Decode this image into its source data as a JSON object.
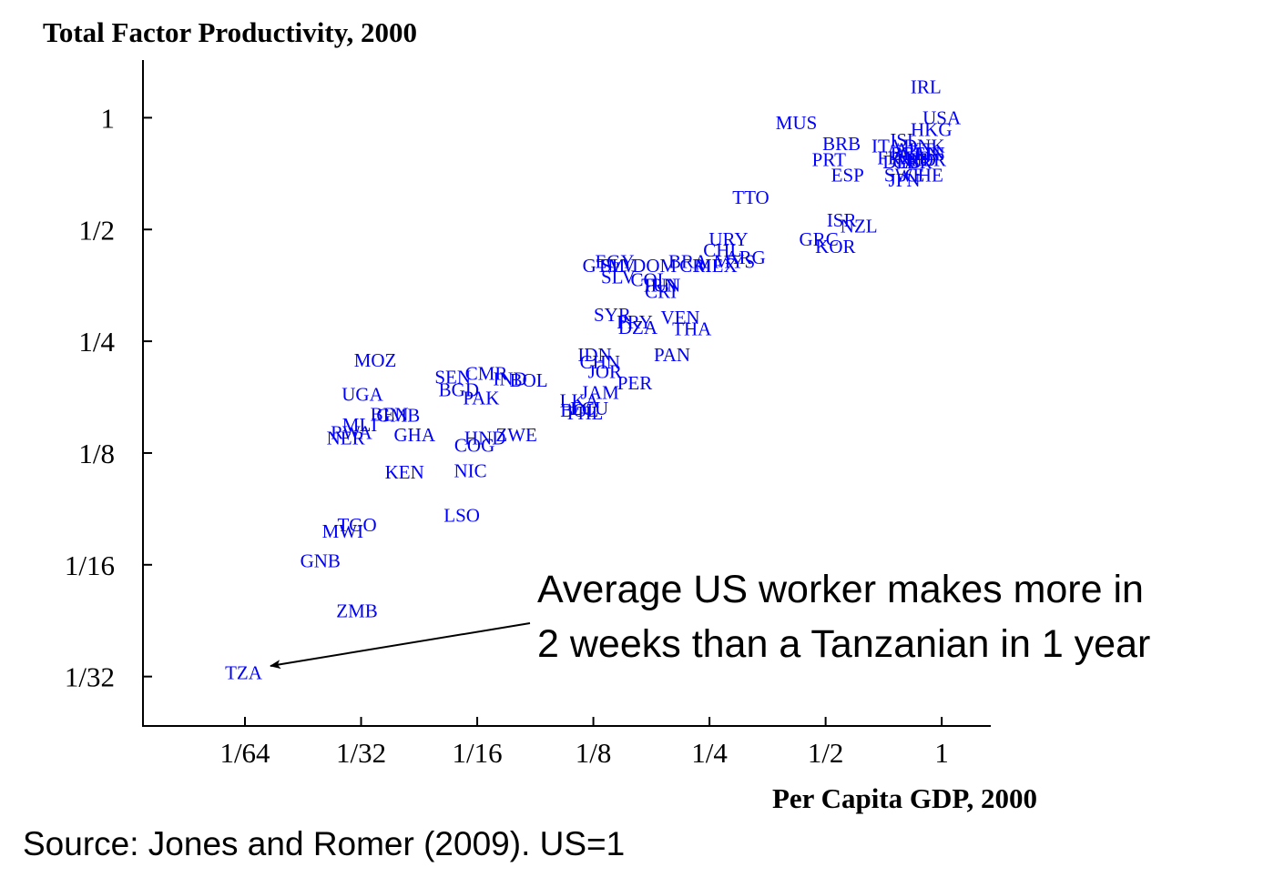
{
  "chart_data": {
    "type": "scatter",
    "ylabel": "Total Factor Productivity, 2000",
    "xlabel": "Per Capita GDP, 2000",
    "xscale": "log2",
    "yscale": "log2",
    "xticks": [
      {
        "value": 0.015625,
        "label": "1/64"
      },
      {
        "value": 0.03125,
        "label": "1/32"
      },
      {
        "value": 0.0625,
        "label": "1/16"
      },
      {
        "value": 0.125,
        "label": "1/8"
      },
      {
        "value": 0.25,
        "label": "1/4"
      },
      {
        "value": 0.5,
        "label": "1/2"
      },
      {
        "value": 1,
        "label": "1"
      }
    ],
    "yticks": [
      {
        "value": 1,
        "label": "1"
      },
      {
        "value": 0.5,
        "label": "1/2"
      },
      {
        "value": 0.25,
        "label": "1/4"
      },
      {
        "value": 0.125,
        "label": "1/8"
      },
      {
        "value": 0.0625,
        "label": "1/16"
      },
      {
        "value": 0.03125,
        "label": "1/32"
      }
    ],
    "xlim": [
      0.0085,
      1.34
    ],
    "ylim": [
      0.023,
      1.43
    ],
    "points": [
      {
        "label": "IRL",
        "x": 0.91,
        "y": 1.21
      },
      {
        "label": "USA",
        "x": 1.0,
        "y": 1.0
      },
      {
        "label": "HKG",
        "x": 0.94,
        "y": 0.93
      },
      {
        "label": "MUS",
        "x": 0.42,
        "y": 0.97
      },
      {
        "label": "BRB",
        "x": 0.55,
        "y": 0.85
      },
      {
        "label": "ITA",
        "x": 0.72,
        "y": 0.84
      },
      {
        "label": "ISL",
        "x": 0.8,
        "y": 0.87
      },
      {
        "label": "DNK",
        "x": 0.9,
        "y": 0.84
      },
      {
        "label": "FIN",
        "x": 0.93,
        "y": 0.8
      },
      {
        "label": "AUT",
        "x": 0.85,
        "y": 0.82
      },
      {
        "label": "BEL",
        "x": 0.82,
        "y": 0.8
      },
      {
        "label": "FRA",
        "x": 0.76,
        "y": 0.78
      },
      {
        "label": "CAN",
        "x": 0.88,
        "y": 0.8
      },
      {
        "label": "NLD",
        "x": 0.86,
        "y": 0.77
      },
      {
        "label": "GBR",
        "x": 0.84,
        "y": 0.76
      },
      {
        "label": "NOR",
        "x": 0.91,
        "y": 0.77
      },
      {
        "label": "AUS",
        "x": 0.83,
        "y": 0.78
      },
      {
        "label": "DEU",
        "x": 0.79,
        "y": 0.76
      },
      {
        "label": "PRT",
        "x": 0.51,
        "y": 0.77
      },
      {
        "label": "ESP",
        "x": 0.57,
        "y": 0.7
      },
      {
        "label": "SWE",
        "x": 0.8,
        "y": 0.7
      },
      {
        "label": "CHE",
        "x": 0.9,
        "y": 0.7
      },
      {
        "label": "JPN",
        "x": 0.8,
        "y": 0.68
      },
      {
        "label": "TTO",
        "x": 0.32,
        "y": 0.61
      },
      {
        "label": "ISR",
        "x": 0.55,
        "y": 0.53
      },
      {
        "label": "NZL",
        "x": 0.61,
        "y": 0.51
      },
      {
        "label": "GRC",
        "x": 0.48,
        "y": 0.47
      },
      {
        "label": "KOR",
        "x": 0.53,
        "y": 0.45
      },
      {
        "label": "URY",
        "x": 0.28,
        "y": 0.47
      },
      {
        "label": "CHL",
        "x": 0.27,
        "y": 0.44
      },
      {
        "label": "ARG",
        "x": 0.31,
        "y": 0.42
      },
      {
        "label": "MYS",
        "x": 0.29,
        "y": 0.41
      },
      {
        "label": "MEX",
        "x": 0.26,
        "y": 0.4
      },
      {
        "label": "BRA",
        "x": 0.22,
        "y": 0.41
      },
      {
        "label": "CRI",
        "x": 0.23,
        "y": 0.4
      },
      {
        "label": "EGY",
        "x": 0.142,
        "y": 0.41
      },
      {
        "label": "GTM",
        "x": 0.133,
        "y": 0.4
      },
      {
        "label": "SLV",
        "x": 0.145,
        "y": 0.4
      },
      {
        "label": "DOM",
        "x": 0.18,
        "y": 0.4
      },
      {
        "label": "SLV",
        "x": 0.145,
        "y": 0.372
      },
      {
        "label": "COL",
        "x": 0.175,
        "y": 0.366
      },
      {
        "label": "TUN",
        "x": 0.187,
        "y": 0.354
      },
      {
        "label": "IRN",
        "x": 0.187,
        "y": 0.354
      },
      {
        "label": "CRI",
        "x": 0.187,
        "y": 0.34
      },
      {
        "label": "SYR",
        "x": 0.14,
        "y": 0.295
      },
      {
        "label": "PRY",
        "x": 0.16,
        "y": 0.282
      },
      {
        "label": "DZA",
        "x": 0.163,
        "y": 0.272
      },
      {
        "label": "VEN",
        "x": 0.21,
        "y": 0.29
      },
      {
        "label": "THA",
        "x": 0.225,
        "y": 0.27
      },
      {
        "label": "PAN",
        "x": 0.2,
        "y": 0.23
      },
      {
        "label": "IDN",
        "x": 0.126,
        "y": 0.23
      },
      {
        "label": "CHN",
        "x": 0.13,
        "y": 0.22
      },
      {
        "label": "JOR",
        "x": 0.134,
        "y": 0.207
      },
      {
        "label": "PER",
        "x": 0.16,
        "y": 0.193
      },
      {
        "label": "JAM",
        "x": 0.13,
        "y": 0.182
      },
      {
        "label": "LKA",
        "x": 0.115,
        "y": 0.173
      },
      {
        "label": "ECU",
        "x": 0.122,
        "y": 0.165
      },
      {
        "label": "BOL",
        "x": 0.115,
        "y": 0.163
      },
      {
        "label": "PHL",
        "x": 0.119,
        "y": 0.16
      },
      {
        "label": "MOZ",
        "x": 0.034,
        "y": 0.222
      },
      {
        "label": "UGA",
        "x": 0.0315,
        "y": 0.18
      },
      {
        "label": "SEN",
        "x": 0.054,
        "y": 0.2
      },
      {
        "label": "CMR",
        "x": 0.066,
        "y": 0.205
      },
      {
        "label": "IND",
        "x": 0.076,
        "y": 0.198
      },
      {
        "label": "BOL",
        "x": 0.085,
        "y": 0.196
      },
      {
        "label": "BGD",
        "x": 0.056,
        "y": 0.185
      },
      {
        "label": "PAK",
        "x": 0.064,
        "y": 0.176
      },
      {
        "label": "BEN",
        "x": 0.037,
        "y": 0.159
      },
      {
        "label": "GMB",
        "x": 0.039,
        "y": 0.158
      },
      {
        "label": "MLI",
        "x": 0.031,
        "y": 0.149
      },
      {
        "label": "RWA",
        "x": 0.0295,
        "y": 0.142
      },
      {
        "label": "NER",
        "x": 0.0285,
        "y": 0.137
      },
      {
        "label": "GHA",
        "x": 0.043,
        "y": 0.14
      },
      {
        "label": "HND",
        "x": 0.0655,
        "y": 0.137
      },
      {
        "label": "ZWE",
        "x": 0.079,
        "y": 0.14
      },
      {
        "label": "COG",
        "x": 0.0615,
        "y": 0.131
      },
      {
        "label": "KEN",
        "x": 0.0405,
        "y": 0.111
      },
      {
        "label": "NIC",
        "x": 0.06,
        "y": 0.112
      },
      {
        "label": "LSO",
        "x": 0.057,
        "y": 0.085
      },
      {
        "label": "TGO",
        "x": 0.0305,
        "y": 0.08
      },
      {
        "label": "MWI",
        "x": 0.028,
        "y": 0.077
      },
      {
        "label": "GNB",
        "x": 0.0245,
        "y": 0.064
      },
      {
        "label": "ZMB",
        "x": 0.0305,
        "y": 0.047
      },
      {
        "label": "TZA",
        "x": 0.0155,
        "y": 0.032
      }
    ],
    "annotation": {
      "lines": [
        "Average US worker makes more in",
        "2 weeks than a Tanzanian in 1 year"
      ],
      "target": "TZA"
    }
  },
  "source_note": "Source: Jones and Romer (2009). US=1"
}
